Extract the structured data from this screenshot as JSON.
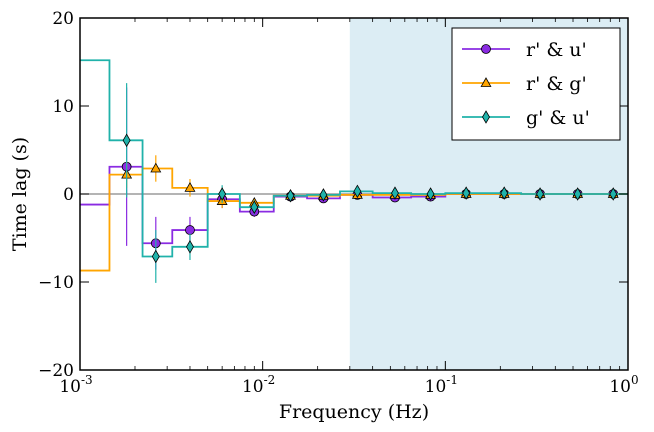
{
  "chart_data": {
    "type": "line",
    "xlabel": "Frequency (Hz)",
    "ylabel": "Time lag (s)",
    "xscale": "log",
    "xlim": [
      0.001,
      1.0
    ],
    "ylim": [
      -20,
      20
    ],
    "x_ticks": [
      {
        "value": 0.001,
        "base": "10",
        "exp": "-3"
      },
      {
        "value": 0.01,
        "base": "10",
        "exp": "-2"
      },
      {
        "value": 0.1,
        "base": "10",
        "exp": "-1"
      },
      {
        "value": 1.0,
        "base": "10",
        "exp": "0"
      }
    ],
    "y_ticks": [
      {
        "value": -20,
        "label": "−20"
      },
      {
        "value": -10,
        "label": "−10"
      },
      {
        "value": 0,
        "label": "0"
      },
      {
        "value": 10,
        "label": "10"
      },
      {
        "value": 20,
        "label": "20"
      }
    ],
    "shaded_region": {
      "x_start": 0.03,
      "x_end": 1.0,
      "color": "#dcedf4"
    },
    "zero_line_color": "#888888",
    "bin_edges": [
      0.001,
      0.00145,
      0.0022,
      0.0032,
      0.005,
      0.0075,
      0.0115,
      0.0175,
      0.0265,
      0.04,
      0.065,
      0.1,
      0.16,
      0.26,
      0.41,
      0.63,
      1.0
    ],
    "bin_centers": [
      0.0012,
      0.0018,
      0.0026,
      0.004,
      0.006,
      0.009,
      0.0142,
      0.0215,
      0.033,
      0.053,
      0.083,
      0.13,
      0.21,
      0.33,
      0.53,
      0.83
    ],
    "series": [
      {
        "name": "r' & u'",
        "color": "#8a2be2",
        "marker": "circle",
        "values": [
          -1.2,
          3.1,
          -5.6,
          -4.1,
          -0.6,
          -2.0,
          -0.3,
          -0.5,
          -0.1,
          -0.4,
          -0.3,
          0.0,
          0.0,
          0.0,
          0.0,
          0.0
        ],
        "errors": [
          0,
          9.0,
          3.0,
          1.5,
          1.0,
          0.6,
          0.4,
          0.3,
          0.2,
          0.15,
          0.15,
          0.1,
          0.1,
          0.1,
          0.1,
          0.1
        ],
        "marker_from": 1
      },
      {
        "name": "r' & g'",
        "color": "#ffa500",
        "marker": "triangle",
        "values": [
          -8.7,
          2.2,
          2.9,
          0.7,
          -0.8,
          -1.0,
          -0.2,
          -0.2,
          -0.1,
          -0.1,
          -0.1,
          0.0,
          0.0,
          0.0,
          0.0,
          0.0
        ],
        "errors": [
          0,
          1.5,
          1.5,
          1.0,
          0.8,
          0.5,
          0.3,
          0.2,
          0.2,
          0.1,
          0.1,
          0.1,
          0.1,
          0.1,
          0.1,
          0.1
        ],
        "marker_from": 1
      },
      {
        "name": "g' & u'",
        "color": "#20b2aa",
        "marker": "diamond",
        "values": [
          15.2,
          6.1,
          -7.1,
          -6.0,
          0.0,
          -1.5,
          -0.2,
          -0.1,
          0.3,
          0.1,
          0.0,
          0.1,
          0.1,
          0.0,
          0.0,
          0.0
        ],
        "errors": [
          0,
          6.5,
          3.0,
          1.5,
          1.0,
          0.8,
          0.4,
          0.3,
          0.2,
          0.15,
          0.1,
          0.1,
          0.1,
          0.1,
          0.1,
          0.1
        ],
        "marker_from": 1
      }
    ],
    "legend_position": "top-right"
  }
}
